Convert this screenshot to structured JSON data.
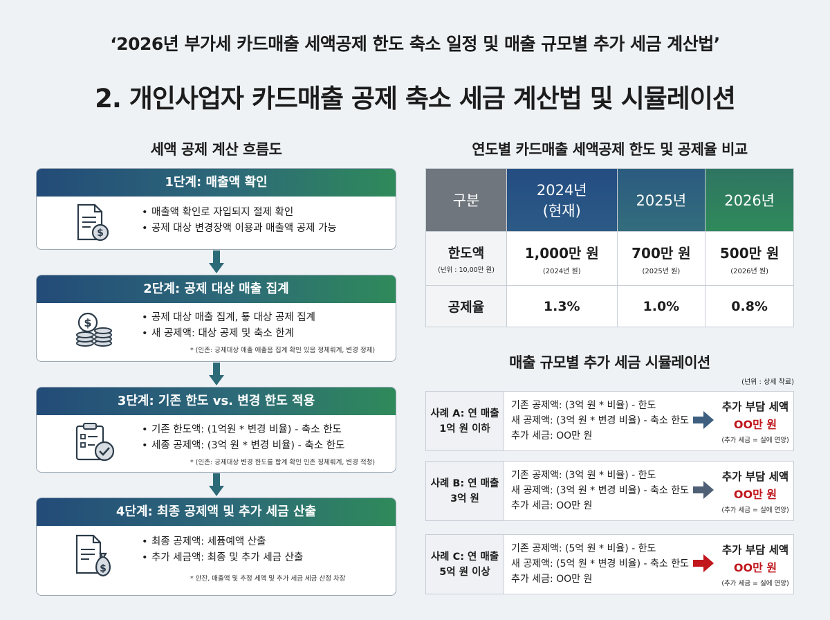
{
  "header": {
    "top_title": "‘2026년 부가세 카드매출 세액공제 한도 축소 일정 및 매출 규모별 추가 세금 계산법’",
    "main_title": "2. 개인사업자 카드매출 공제 축소 세금 계산법 및 시뮬레이션"
  },
  "flow": {
    "title": "세액 공제 계산 흐름도",
    "steps": [
      {
        "head": "1단계: 매출액 확인",
        "icon": "document-coin-icon",
        "bullets": [
          "매출액 확인로 자입되지 절제 확인",
          "공제 대상 변경장액 이용과 매출액 공제 가능"
        ],
        "note": ""
      },
      {
        "head": "2단계: 공제 대상 매출 집계",
        "icon": "coin-stack-icon",
        "bullets": [
          "공제 대상 매출 집계, 툫 대상 공제 집계",
          "새 공제액: 대상 공제 및 축소 한계"
        ],
        "note": "* (인존: 긍제대상 애출 애출음 집계 확인 있음 정체뤄계, 변경 정제)"
      },
      {
        "head": "3단계: 기존 한도 vs. 변경 한도 적용",
        "icon": "clipboard-check-icon",
        "bullets": [
          "기존 한도액: (1억원 * 변경 비율) - 축소 한도",
          "세종 공제액: (3억 원 * 변경 비율) - 축소 한도"
        ],
        "note": "* (인존: 긍제대상 변경 한도를 합계 확인 인존 징체뤄계, 변경 적청)"
      },
      {
        "head": "4단계: 최종 공제액 및 추가 세금 산출",
        "icon": "document-moneybag-icon",
        "bullets": [
          "최종 공제액: 세퓸예액 산출",
          "추가 세금액: 최종 및 추가 세금 산출"
        ],
        "note": "* 안잔, 매출액 및 추정 세액 및 추가 세금 세금 산정 차장"
      }
    ]
  },
  "table": {
    "title": "연도별 카드매출 세액공제 한도 및 공제율 비교",
    "col_header": "구분",
    "years": [
      {
        "line1": "2024년",
        "line2": "(현재)",
        "limit": "1,000만 원",
        "limit_sub": "(2024년 원)",
        "rate": "1.3%"
      },
      {
        "line1": "2025년",
        "line2": "",
        "limit": "700만 원",
        "limit_sub": "(2025년 원)",
        "rate": "1.0%"
      },
      {
        "line1": "2026년",
        "line2": "",
        "limit": "500만 원",
        "limit_sub": "(2026년 원)",
        "rate": "0.8%"
      }
    ],
    "row_limit": "한도액",
    "row_limit_unit": "(넌위 : 10,00만 원)",
    "row_rate": "공제율"
  },
  "simulation": {
    "title": "매출 규모별 추가 세금 시뮬레이션",
    "unit_note": "(넌위 : 상세 착료)",
    "cases": [
      {
        "label": "사례 A: 연 매출 1억 원 이하",
        "lines": [
          "기존 공제액: (3억 원 * 비율) - 한도",
          "새 공제액: (3억 원 * 변경 비율) - 축소 한도",
          "추가 세금: OO만 원"
        ],
        "res_title": "추가 부담 세액",
        "res_value": "OO만 원",
        "res_note": "(추가 세금 = 실에 연앙)",
        "arrow_color": "#3e5f7f"
      },
      {
        "label": "사례 B: 연 매출 3억 원",
        "lines": [
          "기존 공제액: (3억 원 * 비율) - 한도",
          "새 공제액: (3억 원 * 변경 비율) - 축소 한도",
          "추가 세금: OO만 원"
        ],
        "res_title": "추가 부담 세액",
        "res_value": "OO만 원",
        "res_note": "(추가 세금 = 실에 연앙)",
        "arrow_color": "#4f5f75"
      },
      {
        "label": "사례 C: 연 매출 5억 원 이상",
        "lines": [
          "기존 공제액: (5억 원 * 비율) - 한도",
          "새 공제액: (5억 원 * 변경 비율) - 축소 한도",
          "추가 세금: OO만 원"
        ],
        "res_title": "추가 부담 세액",
        "res_value": "OO만 원",
        "res_note": "(추가 세금 = 실에 연앙)",
        "arrow_color": "#c0161c"
      }
    ]
  }
}
